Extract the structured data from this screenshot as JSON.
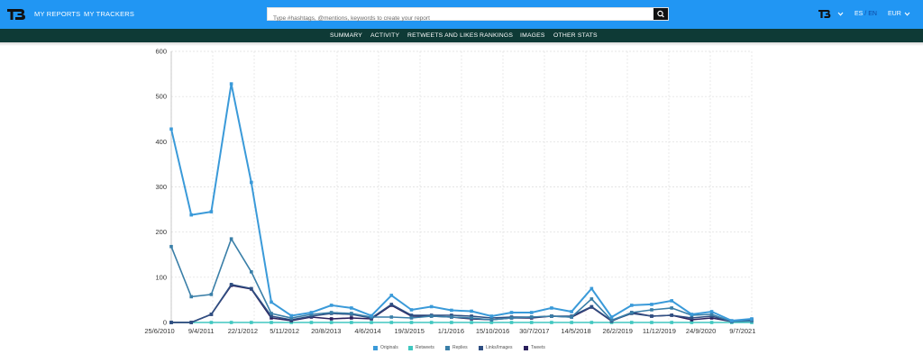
{
  "header": {
    "logo_icon": "tb-logo-icon",
    "nav": [
      "MY REPORTS",
      "MY TRACKERS"
    ],
    "search_placeholder": "Type #hashtags, @mentions, keywords to create your report",
    "search_icon": "search-icon",
    "brand_menu_icon": "tb-brand-icon",
    "lang_es": "ES",
    "lang_sep": "/",
    "lang_en": "EN",
    "currency": "EUR"
  },
  "subnav": [
    "SUMMARY",
    "ACTIVITY",
    "RETWEETS AND LIKES",
    "RANKINGS",
    "IMAGES",
    "OTHER STATS"
  ],
  "colors": {
    "topbar": "#2196f3",
    "subnav": "#0e3a36",
    "originals": "#3a9ad9",
    "retweets": "#40c7c0",
    "replies": "#3a7fa8",
    "links_images": "#2f4f82",
    "tweets": "#2a1f5c"
  },
  "chart_data": {
    "type": "line",
    "title": "",
    "xlabel": "",
    "ylabel": "",
    "ylim": [
      0,
      600
    ],
    "yticks": [
      0,
      100,
      200,
      300,
      400,
      500,
      600
    ],
    "xtick_labels": [
      "25/6/2010",
      "9/4/2011",
      "22/1/2012",
      "5/11/2012",
      "20/8/2013",
      "4/6/2014",
      "19/3/2015",
      "1/1/2016",
      "15/10/2016",
      "30/7/2017",
      "14/5/2018",
      "26/2/2019",
      "11/12/2019",
      "24/9/2020",
      "9/7/2021"
    ],
    "grid": true,
    "legend_position": "bottom",
    "series": [
      {
        "name": "Originals",
        "values": [
          428,
          238,
          245,
          528,
          310,
          45,
          15,
          22,
          38,
          32,
          15,
          60,
          28,
          35,
          27,
          25,
          14,
          22,
          22,
          32,
          24,
          75,
          12,
          38,
          40,
          48,
          18,
          24,
          4,
          8
        ]
      },
      {
        "name": "Retweets",
        "values": [
          0,
          0,
          0,
          0,
          0,
          0,
          0,
          0,
          0,
          0,
          0,
          0,
          0,
          0,
          0,
          0,
          0,
          0,
          0,
          0,
          0,
          0,
          0,
          0,
          0,
          0,
          0,
          0,
          0,
          0
        ]
      },
      {
        "name": "Replies",
        "values": [
          168,
          57,
          62,
          185,
          112,
          20,
          10,
          18,
          22,
          20,
          12,
          12,
          10,
          14,
          12,
          10,
          6,
          10,
          12,
          14,
          12,
          52,
          5,
          22,
          28,
          32,
          16,
          18,
          2,
          3
        ]
      },
      {
        "name": "Links/Images",
        "values": [
          0,
          0,
          18,
          84,
          75,
          14,
          6,
          14,
          20,
          18,
          10,
          40,
          16,
          16,
          16,
          14,
          10,
          12,
          12,
          14,
          14,
          35,
          4,
          20,
          14,
          16,
          10,
          14,
          2,
          5
        ]
      },
      {
        "name": "Tweets",
        "values": [
          0,
          0,
          18,
          82,
          74,
          10,
          4,
          12,
          8,
          10,
          8,
          38,
          14,
          14,
          12,
          8,
          6,
          10,
          10,
          14,
          12,
          34,
          3,
          22,
          14,
          16,
          6,
          10,
          2,
          6
        ]
      }
    ]
  }
}
